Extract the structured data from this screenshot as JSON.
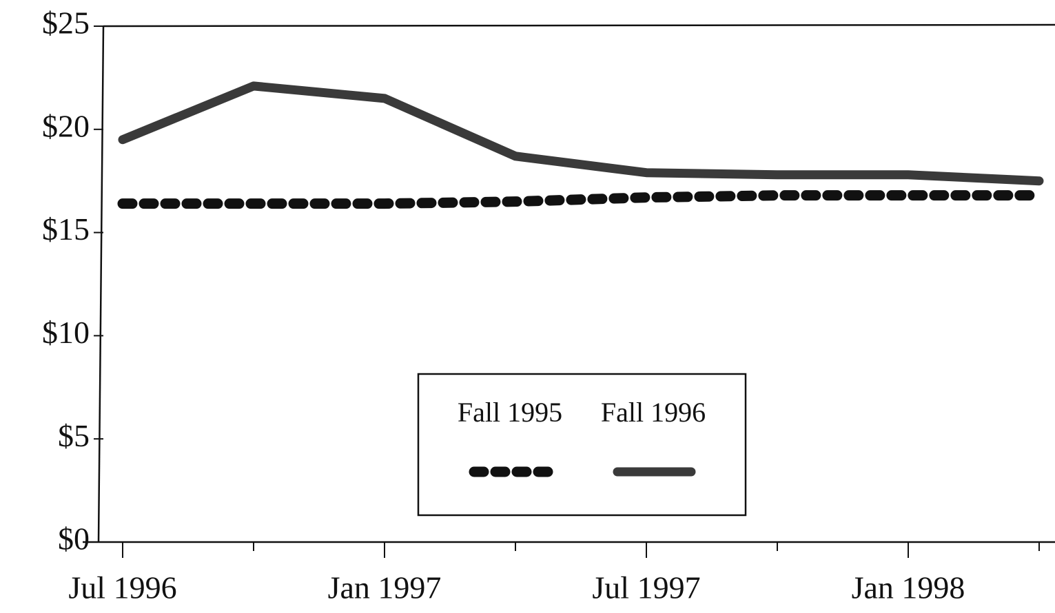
{
  "chart_data": {
    "type": "line",
    "categories": [
      "Jul 1996",
      null,
      "Jan 1997",
      null,
      "Jul 1997",
      null,
      "Jan 1998",
      null
    ],
    "series": [
      {
        "name": "Fall 1995",
        "color": "#111111",
        "style": "dotted",
        "values": [
          16.4,
          16.4,
          16.4,
          16.5,
          16.7,
          16.8,
          16.8,
          16.8
        ]
      },
      {
        "name": "Fall 1996",
        "color": "#3a3a3a",
        "style": "solid",
        "values": [
          19.5,
          22.1,
          21.5,
          18.7,
          17.9,
          17.8,
          17.8,
          17.5
        ]
      }
    ],
    "ylim": [
      0,
      25
    ],
    "yticks": [
      {
        "value": 0,
        "label": "$0"
      },
      {
        "value": 5,
        "label": "$5"
      },
      {
        "value": 10,
        "label": "$10"
      },
      {
        "value": 15,
        "label": "$15"
      },
      {
        "value": 20,
        "label": "$20"
      },
      {
        "value": 25,
        "label": "$25"
      }
    ],
    "legend": "center"
  }
}
